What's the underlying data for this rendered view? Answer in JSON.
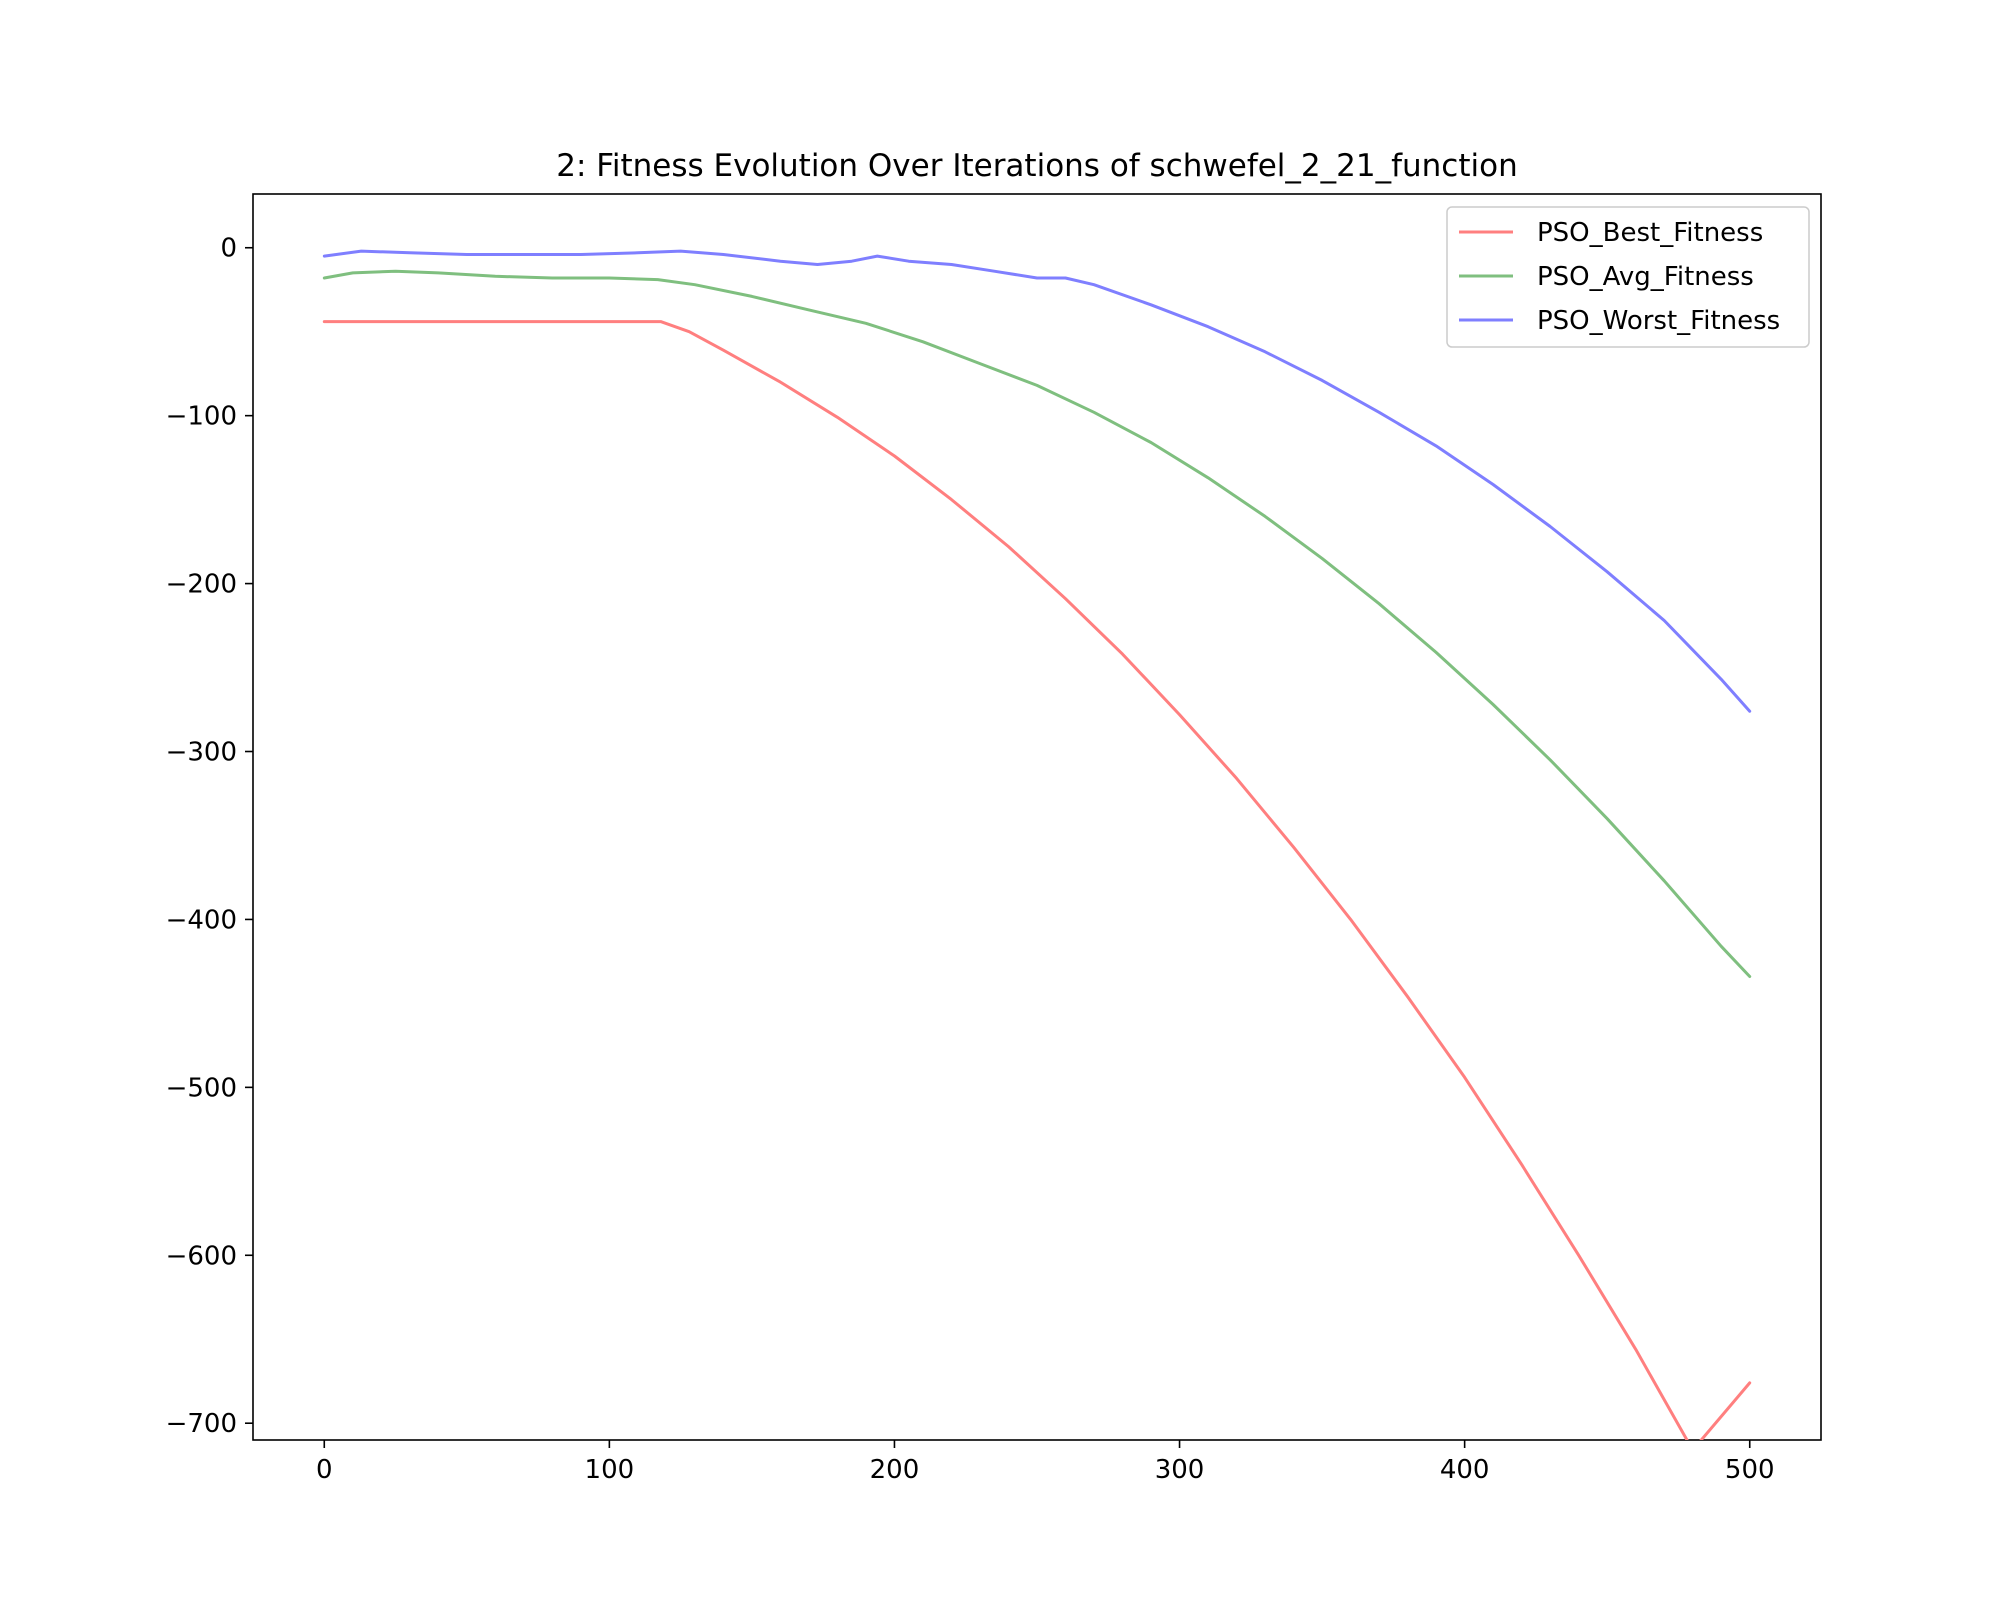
{
  "chart_data": {
    "type": "line",
    "title": "2: Fitness Evolution Over Iterations of schwefel_2_21_function",
    "xlabel": "",
    "ylabel": "",
    "xlim": [
      -25,
      525
    ],
    "ylim": [
      -710,
      32
    ],
    "xticks": [
      0,
      100,
      200,
      300,
      400,
      500
    ],
    "yticks": [
      0,
      -100,
      -200,
      -300,
      -400,
      -500,
      -600,
      -700
    ],
    "xtick_labels": [
      "0",
      "100",
      "200",
      "300",
      "400",
      "500"
    ],
    "ytick_labels": [
      "0",
      "−100",
      "−200",
      "−300",
      "−400",
      "−500",
      "−600",
      "−700"
    ],
    "grid": false,
    "legend_position": "top-right",
    "series": [
      {
        "name": "PSO_Best_Fitness",
        "color": "#ff7f7f",
        "x": [
          0,
          20,
          40,
          60,
          80,
          100,
          118,
          128,
          140,
          160,
          180,
          200,
          220,
          240,
          260,
          280,
          300,
          320,
          340,
          360,
          380,
          400,
          420,
          440,
          460,
          480,
          500
        ],
        "y": [
          -44,
          -44,
          -44,
          -44,
          -44,
          -44,
          -44,
          -50,
          -61,
          -80,
          -101,
          -124,
          -150,
          -178,
          -209,
          -242,
          -278,
          -316,
          -357,
          -400,
          -446,
          -494,
          -546,
          -600,
          -656,
          -716,
          -676
        ]
      },
      {
        "name": "PSO_Avg_Fitness",
        "color": "#7fbf7f",
        "x": [
          0,
          10,
          25,
          40,
          60,
          80,
          100,
          117,
          130,
          150,
          170,
          190,
          210,
          230,
          250,
          270,
          290,
          310,
          330,
          350,
          370,
          390,
          410,
          430,
          450,
          470,
          490,
          500
        ],
        "y": [
          -18,
          -15,
          -14,
          -15,
          -17,
          -18,
          -18,
          -19,
          -22,
          -29,
          -37,
          -45,
          -56,
          -69,
          -82,
          -98,
          -116,
          -137,
          -160,
          -185,
          -212,
          -241,
          -272,
          -305,
          -340,
          -377,
          -416,
          -434
        ]
      },
      {
        "name": "PSO_Worst_Fitness",
        "color": "#7f7fff",
        "x": [
          0,
          13,
          30,
          50,
          70,
          90,
          110,
          125,
          140,
          160,
          173,
          185,
          194,
          205,
          220,
          235,
          250,
          260,
          270,
          290,
          310,
          330,
          350,
          370,
          390,
          410,
          430,
          450,
          470,
          490,
          500
        ],
        "y": [
          -5,
          -2,
          -3,
          -4,
          -4,
          -4,
          -3,
          -2,
          -4,
          -8,
          -10,
          -8,
          -5,
          -8,
          -10,
          -14,
          -18,
          -18,
          -22,
          -34,
          -47,
          -62,
          -79,
          -98,
          -118,
          -141,
          -166,
          -193,
          -222,
          -257,
          -276
        ]
      }
    ]
  }
}
